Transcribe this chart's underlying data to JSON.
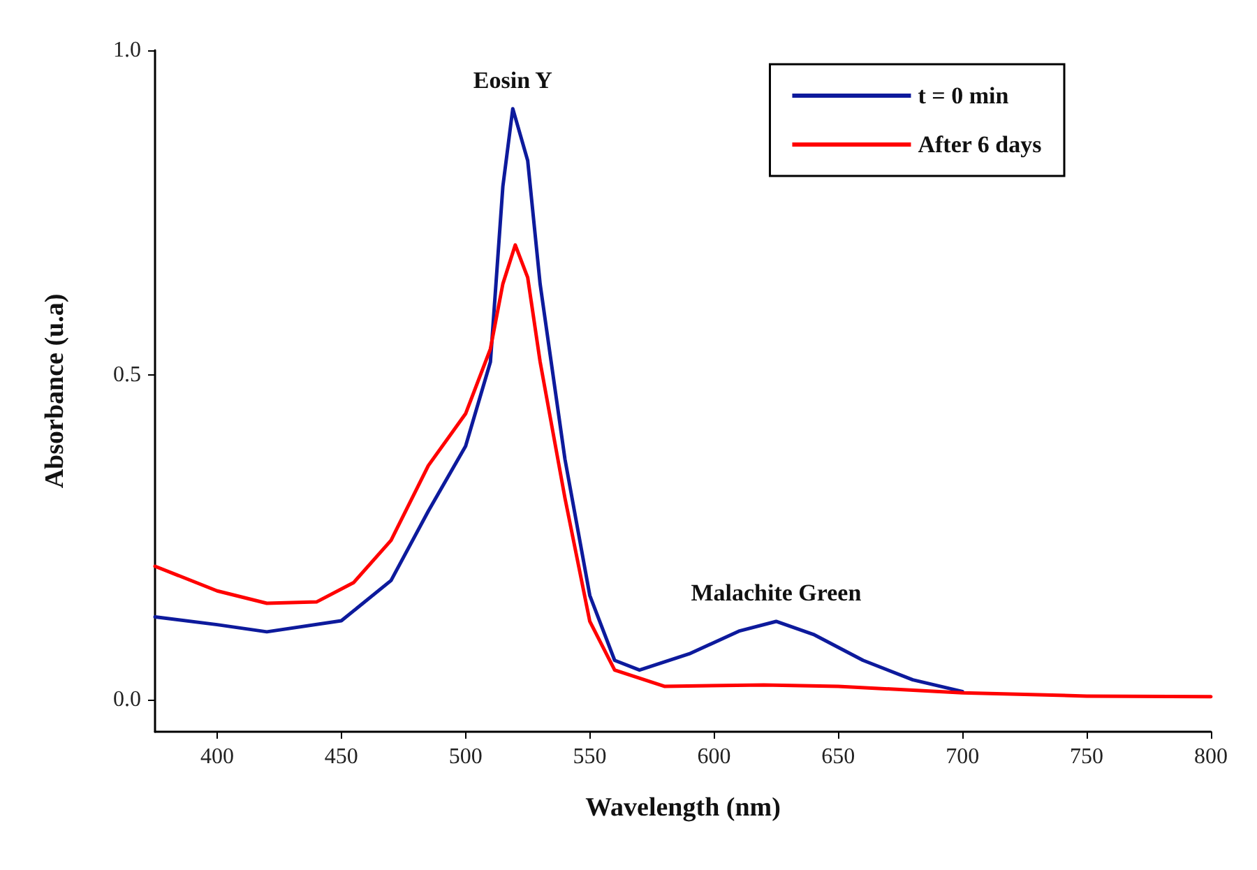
{
  "chart_data": {
    "type": "line",
    "xlabel": "Wavelength (nm)",
    "ylabel": "Absorbance (u.a)",
    "xlim": [
      375,
      800
    ],
    "xticks": [
      400,
      450,
      500,
      550,
      600,
      650,
      700,
      750,
      800
    ],
    "ylim": [
      -0.05,
      1.0
    ],
    "yticks": [
      {
        "value": 0,
        "label": "0.0"
      },
      {
        "value": 0.5,
        "label": "0.5"
      },
      {
        "value": 1.0,
        "label": "1.0"
      }
    ],
    "grid": false,
    "legend": "top right",
    "marker": "none",
    "line_style": "solid",
    "annotations": [
      {
        "text": "Eosin Y",
        "x": 519,
        "y": 0.91
      },
      {
        "text": "Malachite Green",
        "x": 625,
        "y": 0.12
      }
    ],
    "series": [
      {
        "name": "t = 0 min",
        "color": "#0d1a9c",
        "x": [
          375,
          400,
          420,
          450,
          470,
          485,
          500,
          510,
          515,
          519,
          525,
          530,
          540,
          550,
          560,
          570,
          590,
          610,
          625,
          640,
          660,
          680,
          700
        ],
        "values": [
          0.127,
          0.115,
          0.104,
          0.121,
          0.183,
          0.29,
          0.39,
          0.52,
          0.79,
          0.91,
          0.83,
          0.64,
          0.37,
          0.16,
          0.06,
          0.045,
          0.07,
          0.105,
          0.12,
          0.1,
          0.06,
          0.03,
          0.012
        ]
      },
      {
        "name": "After 6 days",
        "color": "#ff0000",
        "x": [
          375,
          400,
          420,
          440,
          455,
          470,
          485,
          500,
          510,
          515,
          520,
          525,
          530,
          540,
          550,
          560,
          580,
          620,
          650,
          700,
          750,
          800
        ],
        "values": [
          0.205,
          0.167,
          0.148,
          0.15,
          0.18,
          0.245,
          0.36,
          0.44,
          0.54,
          0.64,
          0.7,
          0.65,
          0.52,
          0.31,
          0.12,
          0.045,
          0.02,
          0.022,
          0.02,
          0.01,
          0.005,
          0.004
        ]
      }
    ]
  }
}
